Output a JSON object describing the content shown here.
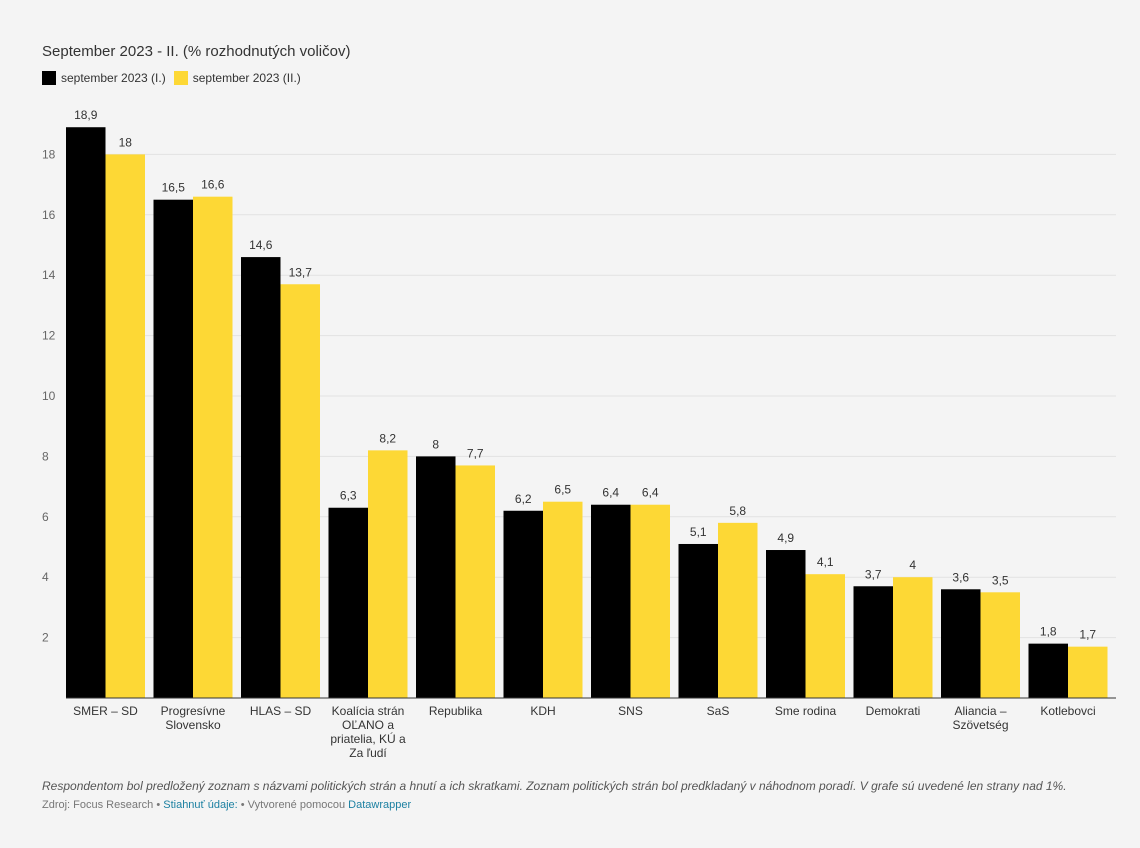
{
  "header": {
    "title": "September 2023 - II. (% rozhodnutých voličov)"
  },
  "chart_data": {
    "type": "bar",
    "title": "September 2023 - II. (% rozhodnutých voličov)",
    "xlabel": "",
    "ylabel": "",
    "ylim": [
      0,
      19
    ],
    "yticks": [
      2,
      4,
      6,
      8,
      10,
      12,
      14,
      16,
      18
    ],
    "grid": true,
    "legend_position": "top-left",
    "categories": [
      [
        "SMER – SD"
      ],
      [
        "Progresívne",
        "Slovensko"
      ],
      [
        "HLAS – SD"
      ],
      [
        "Koalícia strán",
        "OĽANO a",
        "priatelia, KÚ a",
        "Za ľudí"
      ],
      [
        "Republika"
      ],
      [
        "KDH"
      ],
      [
        "SNS"
      ],
      [
        "SaS"
      ],
      [
        "Sme rodina"
      ],
      [
        "Demokrati"
      ],
      [
        "Aliancia –",
        "Szövetség"
      ],
      [
        "Kotlebovci"
      ]
    ],
    "series": [
      {
        "name": "september 2023 (I.)",
        "color": "#000000",
        "values": [
          18.9,
          16.5,
          14.6,
          6.3,
          8,
          6.2,
          6.4,
          5.1,
          4.9,
          3.7,
          3.6,
          1.8
        ],
        "labels": [
          "18,9",
          "16,5",
          "14,6",
          "6,3",
          "8",
          "6,2",
          "6,4",
          "5,1",
          "4,9",
          "3,7",
          "3,6",
          "1,8"
        ]
      },
      {
        "name": "september 2023 (II.)",
        "color": "#fdd835",
        "values": [
          18,
          16.6,
          13.7,
          8.2,
          7.7,
          6.5,
          6.4,
          5.8,
          4.1,
          4,
          3.5,
          1.7
        ],
        "labels": [
          "18",
          "16,6",
          "13,7",
          "8,2",
          "7,7",
          "6,5",
          "6,4",
          "5,8",
          "4,1",
          "4",
          "3,5",
          "1,7"
        ]
      }
    ]
  },
  "notes": "Respondentom bol predložený zoznam s názvami politických strán a hnutí a ich skratkami. Zoznam politických strán bol predkladaný v náhodnom poradí. V grafe sú uvedené len strany nad 1%.",
  "footer": {
    "source": "Zdroj: Focus Research",
    "sep1": " • ",
    "download": "Stiahnuť údaje:",
    "sep2": " • ",
    "created": "Vytvorené pomocou ",
    "tool": "Datawrapper"
  }
}
